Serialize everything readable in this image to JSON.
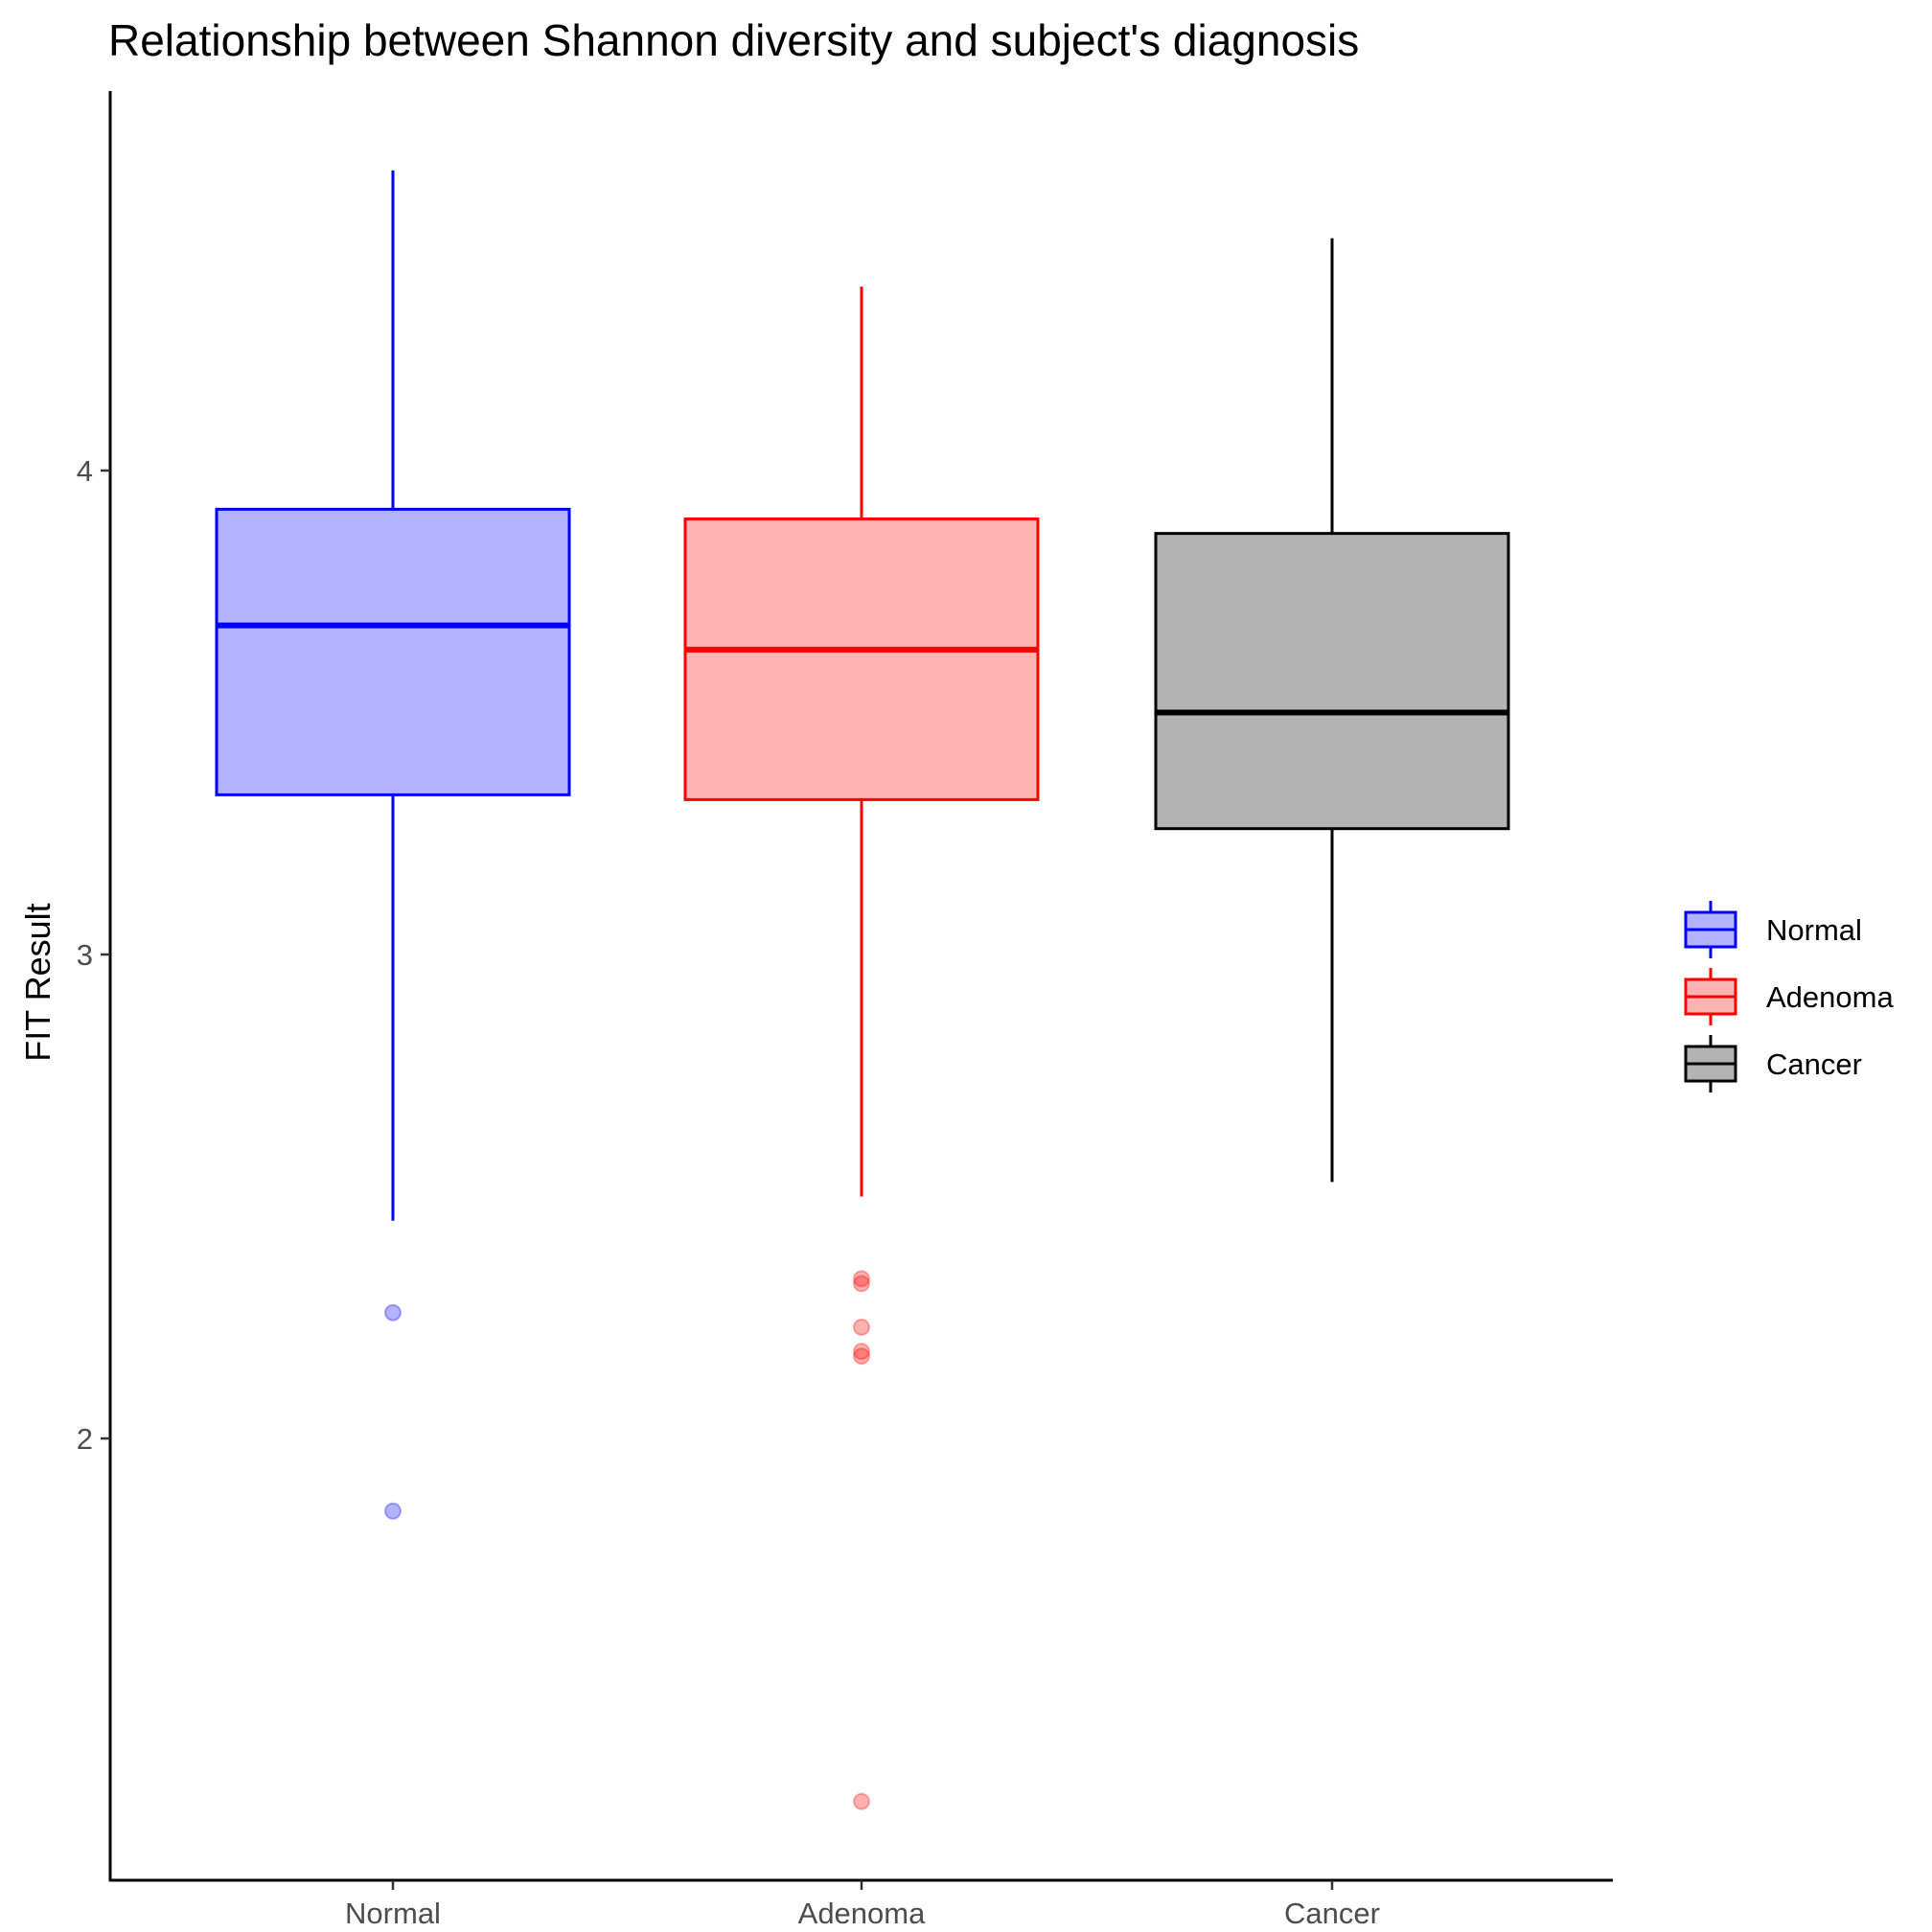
{
  "chart_data": {
    "type": "boxplot",
    "title": "Relationship between Shannon diversity and subject's diagnosis",
    "xlabel": "",
    "ylabel": "FIT Result",
    "ylim": [
      1.25,
      4.78
    ],
    "yticks": [
      2,
      3,
      4
    ],
    "grid": false,
    "legend_position": "right",
    "categories": [
      "Normal",
      "Adenoma",
      "Cancer"
    ],
    "series": [
      {
        "name": "Normal",
        "color": "#0000ff",
        "fill": "#b3b3ff",
        "whisker_low": 2.45,
        "q1": 3.33,
        "median": 3.68,
        "q3": 3.92,
        "whisker_high": 4.62,
        "outliers": [
          2.26,
          1.85
        ]
      },
      {
        "name": "Adenoma",
        "color": "#ff0000",
        "fill": "#ffb3b3",
        "whisker_low": 2.5,
        "q1": 3.32,
        "median": 3.63,
        "q3": 3.9,
        "whisker_high": 4.38,
        "outliers": [
          2.33,
          2.32,
          2.23,
          2.18,
          2.17,
          1.25
        ]
      },
      {
        "name": "Cancer",
        "color": "#000000",
        "fill": "#b3b3b3",
        "whisker_low": 2.53,
        "q1": 3.26,
        "median": 3.5,
        "q3": 3.87,
        "whisker_high": 4.48,
        "outliers": []
      }
    ]
  }
}
